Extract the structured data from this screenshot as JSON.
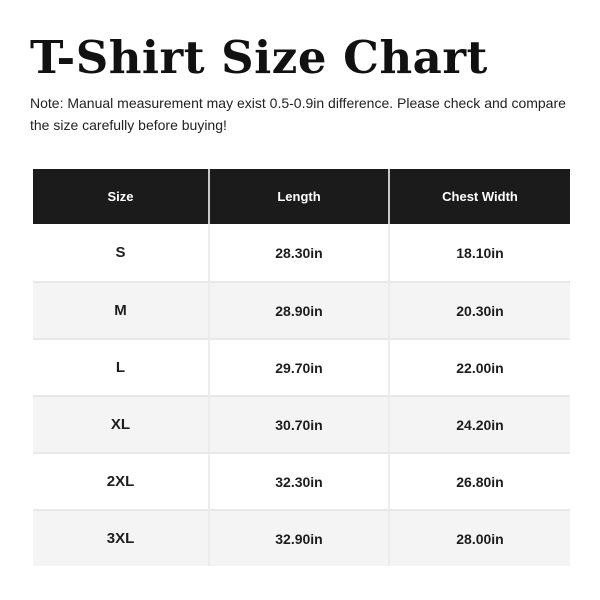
{
  "header": {
    "title": "T-Shirt Size Chart",
    "note": "Note: Manual measurement may exist 0.5-0.9in difference. Please check and compare the size carefully before buying!"
  },
  "colors": {
    "table_header_bg": "#1b1b1b",
    "table_header_text": "#ffffff",
    "row_bg": "#ffffff",
    "row_alt_bg": "#f4f4f4",
    "divider": "#e8e8e8",
    "body_text": "#1d1d1d"
  },
  "chart_data": {
    "type": "table",
    "title": "T-Shirt Size Chart",
    "columns": [
      "Size",
      "Length",
      "Chest Width"
    ],
    "rows": [
      [
        "S",
        "28.30in",
        "18.10in"
      ],
      [
        "M",
        "28.90in",
        "20.30in"
      ],
      [
        "L",
        "29.70in",
        "22.00in"
      ],
      [
        "XL",
        "30.70in",
        "24.20in"
      ],
      [
        "2XL",
        "32.30in",
        "26.80in"
      ],
      [
        "3XL",
        "32.90in",
        "28.00in"
      ]
    ],
    "units": "in",
    "note": "Manual measurement may exist 0.5-0.9in difference."
  }
}
